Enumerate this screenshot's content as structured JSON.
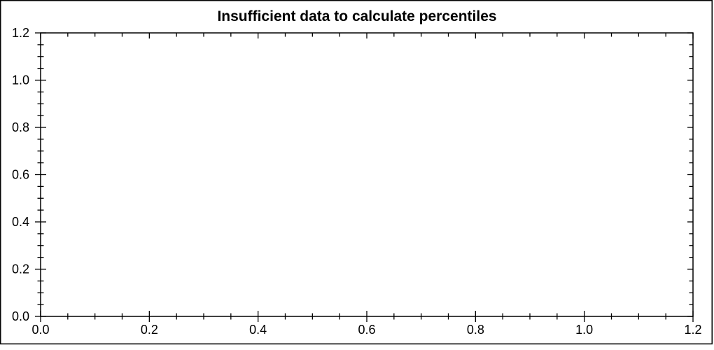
{
  "chart_data": {
    "type": "scatter",
    "title": "Insufficient data to calculate percentiles",
    "series": [],
    "xlabel": "",
    "ylabel": "",
    "xlim": [
      0.0,
      1.2
    ],
    "ylim": [
      0.0,
      1.2
    ],
    "x_tick_labels": [
      "0.0",
      "0.2",
      "0.4",
      "0.6",
      "0.8",
      "1.0",
      "1.2"
    ],
    "y_tick_labels": [
      "0.0",
      "0.2",
      "0.4",
      "0.6",
      "0.8",
      "1.0",
      "1.2"
    ],
    "major_tick_step": 0.2,
    "minor_tick_step": 0.05,
    "grid": false,
    "legend": false
  },
  "colors": {
    "axis": "#000000",
    "text": "#000000",
    "background": "#ffffff"
  }
}
